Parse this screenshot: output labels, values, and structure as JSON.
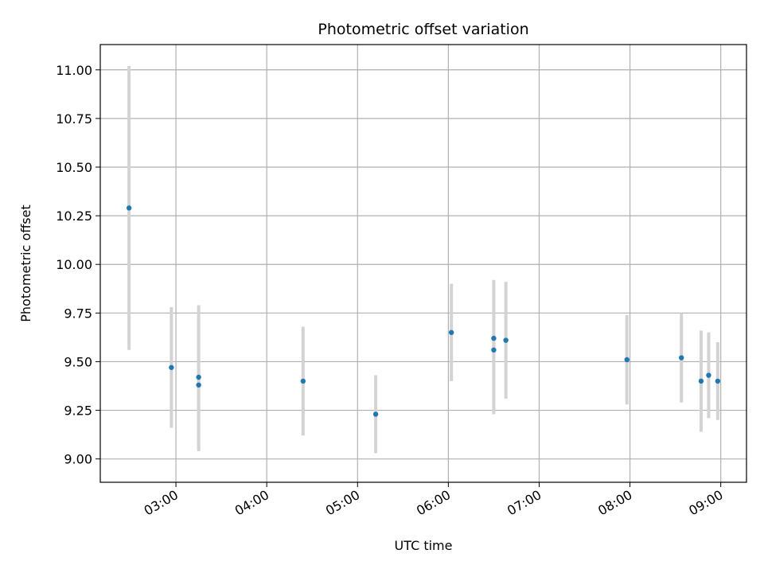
{
  "chart_data": {
    "type": "scatter",
    "title": "Photometric offset variation",
    "xlabel": "UTC time",
    "ylabel": "Photometric offset",
    "xlim": [
      "02:10",
      "09:17"
    ],
    "ylim": [
      8.88,
      11.13
    ],
    "xticks": [
      "03:00",
      "04:00",
      "05:00",
      "06:00",
      "07:00",
      "08:00",
      "09:00"
    ],
    "yticks": [
      9.0,
      9.25,
      9.5,
      9.75,
      10.0,
      10.25,
      10.5,
      10.75,
      11.0
    ],
    "ytick_labels": [
      "9.00",
      "9.25",
      "9.50",
      "9.75",
      "10.00",
      "10.25",
      "10.50",
      "10.75",
      "11.00"
    ],
    "grid": true,
    "series": [
      {
        "marker_color": "#1f77b4",
        "errorbar_color": "#d3d3d3",
        "points": [
          {
            "x": "02:29",
            "y": 10.29,
            "yerr": 0.73
          },
          {
            "x": "02:57",
            "y": 9.47,
            "yerr": 0.31
          },
          {
            "x": "03:15",
            "y": 9.42,
            "yerr": 0.37
          },
          {
            "x": "03:15",
            "y": 9.38,
            "yerr": 0.34
          },
          {
            "x": "04:24",
            "y": 9.4,
            "yerr": 0.28
          },
          {
            "x": "05:12",
            "y": 9.23,
            "yerr": 0.2
          },
          {
            "x": "06:02",
            "y": 9.65,
            "yerr": 0.25
          },
          {
            "x": "06:30",
            "y": 9.62,
            "yerr": 0.3
          },
          {
            "x": "06:30",
            "y": 9.56,
            "yerr": 0.33
          },
          {
            "x": "06:38",
            "y": 9.61,
            "yerr": 0.3
          },
          {
            "x": "07:58",
            "y": 9.51,
            "yerr": 0.23
          },
          {
            "x": "08:34",
            "y": 9.52,
            "yerr": 0.23
          },
          {
            "x": "08:47",
            "y": 9.4,
            "yerr": 0.26
          },
          {
            "x": "08:52",
            "y": 9.43,
            "yerr": 0.22
          },
          {
            "x": "08:58",
            "y": 9.4,
            "yerr": 0.2
          }
        ]
      }
    ]
  }
}
